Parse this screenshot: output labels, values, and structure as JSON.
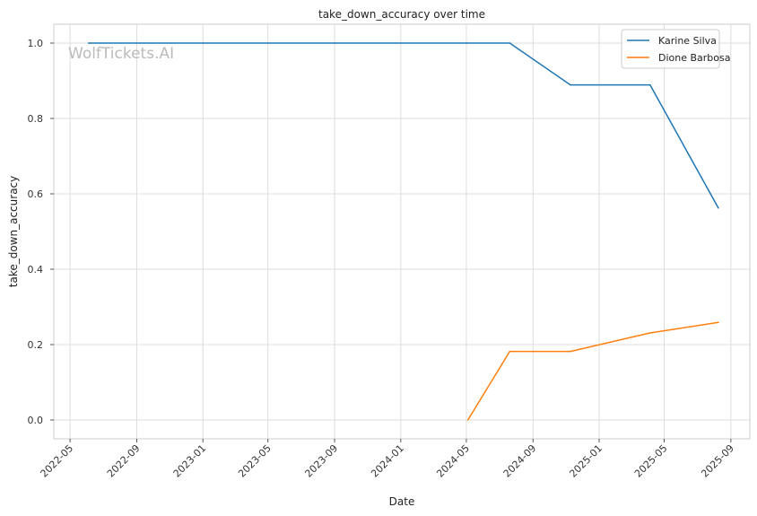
{
  "chart_data": {
    "type": "line",
    "title": "take_down_accuracy over time",
    "xlabel": "Date",
    "ylabel": "take_down_accuracy",
    "watermark": "WolfTickets.AI",
    "xlim": [
      "2022-04-01",
      "2025-10-06"
    ],
    "ylim": [
      -0.05,
      1.05
    ],
    "x_ticks": [
      "2022-05",
      "2022-09",
      "2023-01",
      "2023-05",
      "2023-09",
      "2024-01",
      "2024-05",
      "2024-09",
      "2025-01",
      "2025-05",
      "2025-09"
    ],
    "y_ticks": [
      "0.0",
      "0.2",
      "0.4",
      "0.6",
      "0.8",
      "1.0"
    ],
    "grid": true,
    "legend_position": "top-right",
    "series": [
      {
        "name": "Karine Silva",
        "color": "#1f77b4",
        "points": [
          {
            "x": "2022-06-04",
            "y": 1.0
          },
          {
            "x": "2024-07-20",
            "y": 1.0
          },
          {
            "x": "2024-11-09",
            "y": 0.889
          },
          {
            "x": "2025-04-05",
            "y": 0.889
          },
          {
            "x": "2025-08-09",
            "y": 0.5625
          }
        ]
      },
      {
        "name": "Dione Barbosa",
        "color": "#ff7f0e",
        "points": [
          {
            "x": "2024-05-04",
            "y": 0.0
          },
          {
            "x": "2024-07-20",
            "y": 0.182
          },
          {
            "x": "2024-11-09",
            "y": 0.182
          },
          {
            "x": "2025-04-05",
            "y": 0.231
          },
          {
            "x": "2025-08-09",
            "y": 0.259
          }
        ]
      }
    ]
  }
}
